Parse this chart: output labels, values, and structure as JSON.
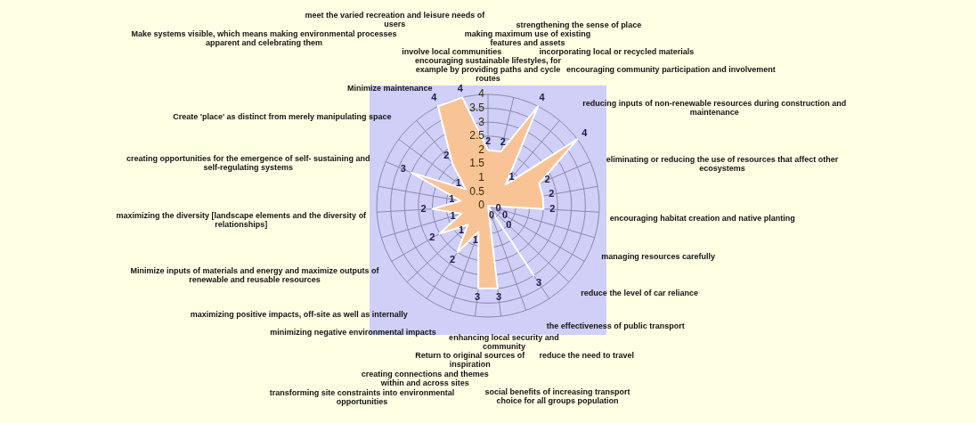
{
  "chart_data": {
    "type": "radar",
    "categories": [
      "encouraging sustainable lifestyles, for example by providing paths and cycle routes",
      "making maximum use of existing features and assets",
      "strengthening the sense of place",
      "incorporating local or recycled materials",
      "encouraging community participation and involvement",
      "reducing inputs of non-renewable resources during construction and maintenance",
      "eliminating or reducing the use of resources that affect other ecosystems",
      "encouraging habitat creation and native planting",
      "managing resources carefully",
      "reduce the level of car reliance",
      "the effectiveness of public transport",
      "reduce the need to travel",
      "social benefits of increasing transport choice for all groups population",
      "enhancing local security and community",
      "Return to original sources of inspiration",
      "creating connections and themes within and across sites",
      "transforming site constraints into environmental opportunities",
      "minimizing negative environmental impacts",
      "maximizing positive impacts, off-site as well as internally",
      "Minimize inputs of materials and energy and maximize outputs of renewable and reusable resources",
      "maximizing the diversity [landscape elements and the diversity of relationships]",
      "creating opportunities for the emergence of self- sustaining and self-regulating systems",
      "Create 'place' as distinct from merely manipulating space",
      "Make systems visible, which means making environmental processes apparent and celebrating them",
      "Minimize maintenance",
      "meet the varied recreation and leisure needs of users",
      "involve local communities"
    ],
    "series": [
      {
        "color": "#f8c496",
        "values": [
          2,
          2,
          4,
          1,
          4,
          2,
          2,
          2,
          0,
          0,
          0,
          3,
          0,
          3,
          3,
          1,
          2,
          1,
          2,
          1,
          2,
          1,
          3,
          1,
          2,
          4,
          4
        ]
      }
    ],
    "ylim": [
      0,
      4
    ],
    "yticks": [
      0,
      0.5,
      1,
      1.5,
      2,
      2.5,
      3,
      3.5,
      4
    ],
    "grid": true,
    "legend": false,
    "marker": "none",
    "data_labels": true
  }
}
